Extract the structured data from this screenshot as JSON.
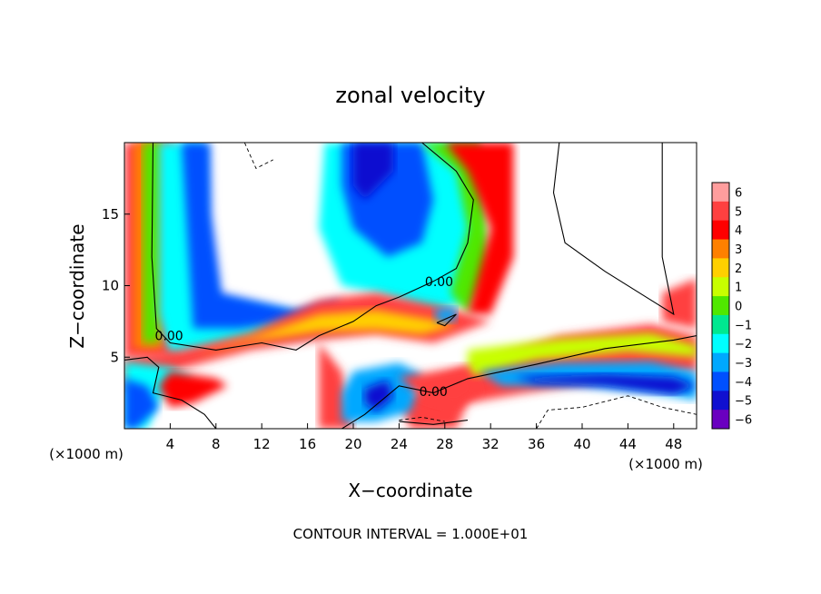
{
  "chart_data": {
    "type": "heatmap",
    "title": "zonal velocity",
    "xlabel": "X−coordinate",
    "ylabel": "Z−coordinate",
    "x_unit_left": "(×1000 m)",
    "x_unit_right": "(×1000 m)",
    "xlim": [
      0,
      50
    ],
    "ylim": [
      0,
      20
    ],
    "x_ticks": [
      4,
      8,
      12,
      16,
      20,
      24,
      28,
      32,
      36,
      40,
      44,
      48
    ],
    "y_ticks": [
      5,
      10,
      15
    ],
    "footer": "CONTOUR INTERVAL = 1.000E+01",
    "colorbar": {
      "levels": [
        6,
        5,
        4,
        3,
        2,
        1,
        0,
        -1,
        -2,
        -3,
        -4,
        -5,
        -6
      ],
      "colors": [
        "#ff9d9d",
        "#ff4040",
        "#ff0000",
        "#ff8000",
        "#ffd000",
        "#c8ff00",
        "#50e800",
        "#00e890",
        "#00ffff",
        "#00a8ff",
        "#0050ff",
        "#1010d0",
        "#6a00c0"
      ]
    },
    "contour_labels": [
      {
        "text": "0.00",
        "x": 3.9,
        "z": 6.5
      },
      {
        "text": "0.00",
        "x": 27.5,
        "z": 10.3
      },
      {
        "text": "0.00",
        "x": 27.0,
        "z": 2.6
      }
    ]
  }
}
